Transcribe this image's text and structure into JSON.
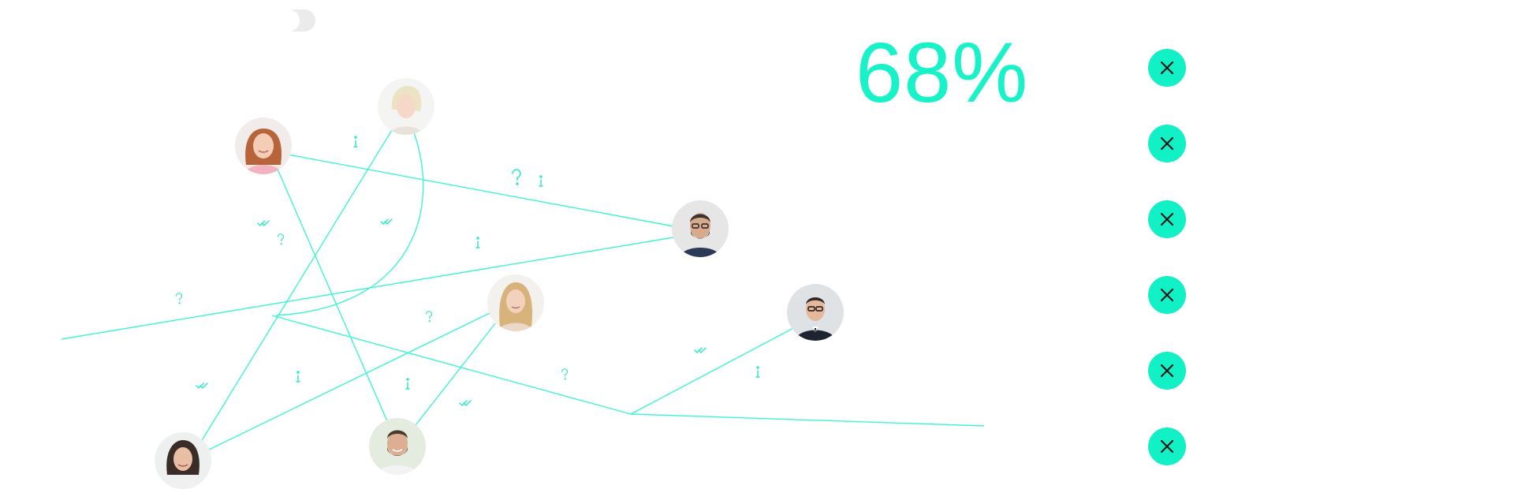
{
  "stat": {
    "percent": "68%"
  },
  "colors": {
    "accent": "#18f2c9",
    "line": "#3df5d2",
    "button": "#12f0c5",
    "icon": "#1a1a1a"
  },
  "icons": {
    "close": "close-icon",
    "question": "question-mark-icon",
    "info": "info-icon",
    "check": "double-check-icon"
  },
  "close_buttons": [
    {
      "id": "close-button-1"
    },
    {
      "id": "close-button-2"
    },
    {
      "id": "close-button-3"
    },
    {
      "id": "close-button-4"
    },
    {
      "id": "close-button-5"
    },
    {
      "id": "close-button-6"
    }
  ],
  "people": [
    {
      "id": "person-woman-redhair"
    },
    {
      "id": "person-woman-blonde-short"
    },
    {
      "id": "person-man-beard-glasses"
    },
    {
      "id": "person-woman-blonde-long"
    },
    {
      "id": "person-man-suit-glasses"
    },
    {
      "id": "person-woman-dark-hair"
    },
    {
      "id": "person-man-beard-smile"
    }
  ]
}
